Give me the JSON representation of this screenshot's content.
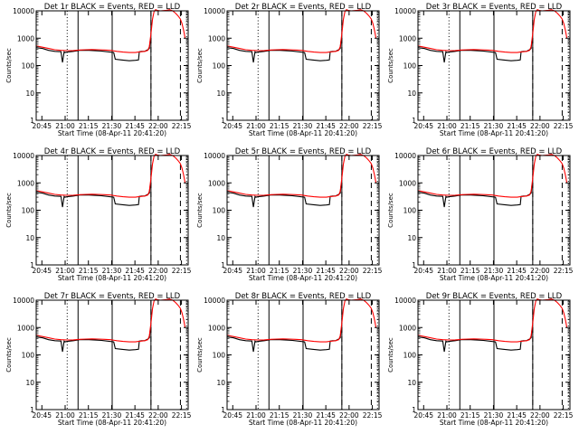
{
  "figure": {
    "panels": [
      {
        "title": "Det 1r BLACK = Events, RED = LLD"
      },
      {
        "title": "Det 2r BLACK = Events, RED = LLD"
      },
      {
        "title": "Det 3r BLACK = Events, RED = LLD"
      },
      {
        "title": "Det 4r BLACK = Events, RED = LLD"
      },
      {
        "title": "Det 5r BLACK = Events, RED = LLD"
      },
      {
        "title": "Det 6r BLACK = Events, RED = LLD"
      },
      {
        "title": "Det 7r BLACK = Events, RED = LLD"
      },
      {
        "title": "Det 8r BLACK = Events, RED = LLD"
      },
      {
        "title": "Det 9r BLACK = Events, RED = LLD"
      }
    ],
    "xlabel": "Start Time (08-Apr-11 20:41:20)",
    "ylabel": "Counts/sec",
    "x_tick_labels": [
      "20:45",
      "21:00",
      "21:15",
      "21:30",
      "21:45",
      "22:00",
      "22:15"
    ],
    "y_tick_labels": [
      "1",
      "10",
      "100",
      "1000",
      "10000"
    ],
    "colors": {
      "events": "#000000",
      "lld": "#ff0000",
      "axes": "#000000",
      "background": "#ffffff"
    }
  },
  "chart_data": {
    "type": "line",
    "layout": "3x3 grid of identical-format panels",
    "x_unit": "minutes after 20:41:20",
    "xlim": [
      0,
      98
    ],
    "y_scale": "log",
    "ylim": [
      1,
      10000
    ],
    "vertical_lines": [
      {
        "style": "dotted",
        "x": 20
      },
      {
        "style": "solid",
        "x": 27
      },
      {
        "style": "solid",
        "x": 49
      },
      {
        "style": "solid",
        "x": 74
      },
      {
        "style": "dashed",
        "x": 74
      },
      {
        "style": "dashed",
        "x": 93
      },
      {
        "style": "dotted",
        "x": 97
      }
    ],
    "series": [
      {
        "name": "Events",
        "color": "#000000",
        "x": [
          0,
          4,
          8,
          12,
          16,
          17,
          18,
          18.5,
          20,
          24,
          28,
          34,
          42,
          50,
          51,
          55,
          60,
          64,
          66,
          66.5,
          68,
          70,
          71,
          72,
          73,
          73.5
        ],
        "y": [
          450,
          420,
          360,
          330,
          320,
          130,
          320,
          300,
          310,
          330,
          360,
          360,
          340,
          300,
          170,
          160,
          150,
          155,
          160,
          320,
          330,
          330,
          360,
          380,
          420,
          800
        ]
      },
      {
        "name": "LLD",
        "color": "#ff0000",
        "x": [
          0,
          4,
          8,
          12,
          16,
          20,
          24,
          28,
          32,
          36,
          40,
          44,
          48,
          52,
          56,
          60,
          64,
          66,
          68,
          70,
          72,
          73,
          74,
          75,
          76,
          77,
          78,
          80,
          84,
          86,
          88,
          89,
          90,
          91,
          92,
          93,
          94,
          95,
          96
        ],
        "y": [
          520,
          470,
          420,
          380,
          360,
          350,
          355,
          370,
          380,
          385,
          380,
          370,
          360,
          330,
          310,
          300,
          300,
          310,
          320,
          330,
          360,
          500,
          1500,
          5000,
          9500,
          11000,
          10500,
          10000,
          10500,
          11000,
          10000,
          9000,
          8000,
          7000,
          6000,
          5000,
          3500,
          2000,
          1000
        ]
      }
    ]
  }
}
